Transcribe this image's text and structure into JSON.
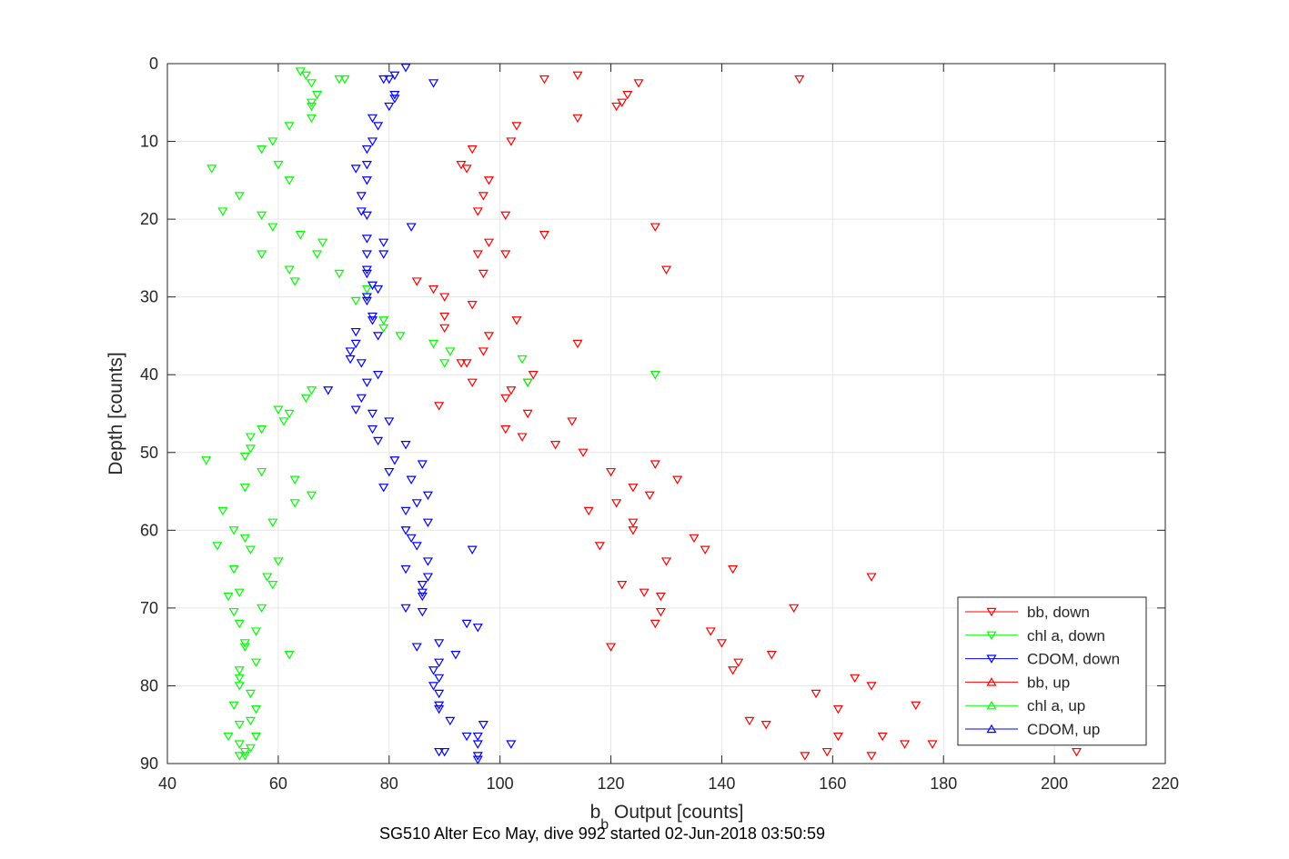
{
  "chart_data": {
    "type": "scatter",
    "xlabel": "b",
    "xlabel_subscript": "b",
    "xlabel_rest": " Output [counts]",
    "ylabel": "Depth [counts]",
    "caption": "SG510 Alter Eco May, dive 992 started 02-Jun-2018 03:50:59",
    "xlim": [
      40,
      220
    ],
    "ylim": [
      0,
      90
    ],
    "y_reversed": true,
    "grid": true,
    "legend_position": "lower-right",
    "xticks": [
      40,
      60,
      80,
      100,
      120,
      140,
      160,
      180,
      200,
      220
    ],
    "yticks": [
      0,
      10,
      20,
      30,
      40,
      50,
      60,
      70,
      80,
      90
    ],
    "series": [
      {
        "name": "bb, down",
        "color": "#ff0000",
        "marker": "triangle-down",
        "points": [
          [
            108,
            2
          ],
          [
            154,
            2
          ],
          [
            114,
            1.5
          ],
          [
            125,
            2.5
          ],
          [
            123,
            4
          ],
          [
            122,
            5
          ],
          [
            121,
            5.5
          ],
          [
            114,
            7
          ],
          [
            103,
            8
          ],
          [
            102,
            10
          ],
          [
            95,
            11
          ],
          [
            93,
            13
          ],
          [
            94,
            13.5
          ],
          [
            98,
            15
          ],
          [
            97,
            17
          ],
          [
            96,
            19
          ],
          [
            101,
            19.5
          ],
          [
            108,
            22
          ],
          [
            128,
            21
          ],
          [
            98,
            23
          ],
          [
            96,
            24.5
          ],
          [
            101,
            24.5
          ],
          [
            130,
            26.5
          ],
          [
            97,
            27
          ],
          [
            85,
            28
          ],
          [
            88,
            29
          ],
          [
            90,
            30
          ],
          [
            95,
            31
          ],
          [
            90,
            32.5
          ],
          [
            103,
            33
          ],
          [
            98,
            35
          ],
          [
            90,
            34
          ],
          [
            114,
            36
          ],
          [
            97,
            37
          ],
          [
            93,
            38.5
          ],
          [
            94,
            38.5
          ],
          [
            106,
            40
          ],
          [
            105,
            41
          ],
          [
            102,
            42
          ],
          [
            101,
            43
          ],
          [
            95,
            41
          ],
          [
            89,
            44
          ],
          [
            105,
            45
          ],
          [
            113,
            46
          ],
          [
            101,
            47
          ],
          [
            104,
            48
          ],
          [
            110,
            49
          ],
          [
            115,
            50
          ],
          [
            128,
            51.5
          ],
          [
            120,
            52.5
          ],
          [
            132,
            53.5
          ],
          [
            127,
            55.5
          ],
          [
            124,
            54.5
          ],
          [
            121,
            56.5
          ],
          [
            116,
            57.5
          ],
          [
            124,
            59
          ],
          [
            124,
            60
          ],
          [
            135,
            61
          ],
          [
            118,
            62
          ],
          [
            137,
            62.5
          ],
          [
            130,
            64
          ],
          [
            142,
            65
          ],
          [
            122,
            67
          ],
          [
            167,
            66
          ],
          [
            126,
            68
          ],
          [
            129,
            68.5
          ],
          [
            129,
            70.5
          ],
          [
            153,
            70
          ],
          [
            128,
            72
          ],
          [
            138,
            73
          ],
          [
            140,
            74.5
          ],
          [
            120,
            75
          ],
          [
            149,
            76
          ],
          [
            143,
            77
          ],
          [
            142,
            78
          ],
          [
            164,
            79
          ],
          [
            167,
            80
          ],
          [
            157,
            81
          ],
          [
            161,
            83
          ],
          [
            175,
            82.5
          ],
          [
            145,
            84.5
          ],
          [
            148,
            85
          ],
          [
            161,
            86.5
          ],
          [
            169,
            86.5
          ],
          [
            173,
            87.5
          ],
          [
            178,
            87.5
          ],
          [
            204,
            88.5
          ],
          [
            159,
            88.5
          ],
          [
            155,
            89
          ],
          [
            167,
            89
          ]
        ]
      },
      {
        "name": "chl a, down",
        "color": "#00ff00",
        "marker": "triangle-down",
        "points": [
          [
            64,
            1
          ],
          [
            65,
            1.5
          ],
          [
            71,
            2
          ],
          [
            72,
            2
          ],
          [
            66,
            2.5
          ],
          [
            67,
            4
          ],
          [
            66,
            5
          ],
          [
            66,
            5.5
          ],
          [
            66,
            7
          ],
          [
            62,
            8
          ],
          [
            59,
            10
          ],
          [
            57,
            11
          ],
          [
            60,
            13
          ],
          [
            48,
            13.5
          ],
          [
            62,
            15
          ],
          [
            53,
            17
          ],
          [
            50,
            19
          ],
          [
            57,
            19.5
          ],
          [
            59,
            21
          ],
          [
            64,
            22
          ],
          [
            68,
            23
          ],
          [
            57,
            24.5
          ],
          [
            67,
            24.5
          ],
          [
            62,
            26.5
          ],
          [
            71,
            27
          ],
          [
            63,
            28
          ],
          [
            76,
            29
          ],
          [
            76,
            30
          ],
          [
            74,
            30.5
          ],
          [
            79,
            33
          ],
          [
            79,
            34
          ],
          [
            82,
            35
          ],
          [
            88,
            36
          ],
          [
            91,
            37
          ],
          [
            90,
            38.5
          ],
          [
            104,
            38
          ],
          [
            128,
            40
          ],
          [
            105,
            41
          ],
          [
            66,
            42
          ],
          [
            65,
            43
          ],
          [
            60,
            44.5
          ],
          [
            61,
            46
          ],
          [
            62,
            45
          ],
          [
            57,
            47
          ],
          [
            55,
            48
          ],
          [
            55,
            49.5
          ],
          [
            47,
            51
          ],
          [
            54,
            50.5
          ],
          [
            57,
            52.5
          ],
          [
            63,
            53.5
          ],
          [
            54,
            54.5
          ],
          [
            66,
            55.5
          ],
          [
            63,
            56.5
          ],
          [
            50,
            57.5
          ],
          [
            59,
            59
          ],
          [
            52,
            60
          ],
          [
            54,
            61
          ],
          [
            49,
            62
          ],
          [
            55,
            62.5
          ],
          [
            60,
            64
          ],
          [
            52,
            65
          ],
          [
            58,
            66
          ],
          [
            59,
            67
          ],
          [
            51,
            68.5
          ],
          [
            53,
            68
          ],
          [
            57,
            70
          ],
          [
            52,
            70.5
          ],
          [
            53,
            72
          ],
          [
            56,
            73
          ],
          [
            54,
            74.5
          ],
          [
            54,
            75
          ],
          [
            62,
            76
          ],
          [
            56,
            77
          ],
          [
            53,
            78
          ],
          [
            53,
            79
          ],
          [
            53,
            80
          ],
          [
            55,
            81
          ],
          [
            52,
            82.5
          ],
          [
            56,
            83
          ],
          [
            53,
            85
          ],
          [
            55,
            84.5
          ],
          [
            51,
            86.5
          ],
          [
            56,
            86.5
          ],
          [
            53,
            87.5
          ],
          [
            55,
            88
          ],
          [
            54,
            88.5
          ],
          [
            53,
            89
          ],
          [
            54,
            89
          ]
        ]
      },
      {
        "name": "CDOM, down",
        "color": "#0000ff",
        "marker": "triangle-down",
        "points": [
          [
            83,
            0.5
          ],
          [
            81,
            1.5
          ],
          [
            80,
            2
          ],
          [
            79,
            2
          ],
          [
            88,
            2.5
          ],
          [
            81,
            4
          ],
          [
            81,
            4.5
          ],
          [
            80,
            5.5
          ],
          [
            77,
            7
          ],
          [
            78,
            8
          ],
          [
            77,
            10
          ],
          [
            76,
            11
          ],
          [
            76,
            13
          ],
          [
            74,
            13.5
          ],
          [
            76,
            15
          ],
          [
            75,
            17
          ],
          [
            75,
            19
          ],
          [
            76,
            19.5
          ],
          [
            84,
            21
          ],
          [
            76,
            22.5
          ],
          [
            79,
            23
          ],
          [
            76,
            24.5
          ],
          [
            79,
            24.5
          ],
          [
            76,
            26.5
          ],
          [
            76,
            27
          ],
          [
            77,
            28.5
          ],
          [
            78,
            29
          ],
          [
            76,
            30
          ],
          [
            76,
            30.5
          ],
          [
            77,
            32.5
          ],
          [
            77,
            33
          ],
          [
            78,
            35
          ],
          [
            74,
            34.5
          ],
          [
            74,
            36
          ],
          [
            73,
            37
          ],
          [
            75,
            38.5
          ],
          [
            73,
            38
          ],
          [
            76,
            41
          ],
          [
            78,
            40
          ],
          [
            69,
            42
          ],
          [
            75,
            43
          ],
          [
            74,
            44.5
          ],
          [
            77,
            45
          ],
          [
            80,
            46
          ],
          [
            77,
            47
          ],
          [
            78,
            48.5
          ],
          [
            83,
            49
          ],
          [
            81,
            51
          ],
          [
            86,
            51.5
          ],
          [
            80,
            52.5
          ],
          [
            84,
            53.5
          ],
          [
            79,
            54.5
          ],
          [
            87,
            55.5
          ],
          [
            85,
            56.5
          ],
          [
            83,
            57.5
          ],
          [
            87,
            59
          ],
          [
            83,
            60
          ],
          [
            84,
            61
          ],
          [
            85,
            62
          ],
          [
            95,
            62.5
          ],
          [
            87,
            64
          ],
          [
            83,
            65
          ],
          [
            87,
            66
          ],
          [
            86,
            67
          ],
          [
            86,
            68.5
          ],
          [
            86,
            68
          ],
          [
            83,
            70
          ],
          [
            86,
            70.5
          ],
          [
            94,
            72
          ],
          [
            96,
            72.5
          ],
          [
            89,
            74.5
          ],
          [
            85,
            75
          ],
          [
            92,
            76
          ],
          [
            89,
            77
          ],
          [
            88,
            78
          ],
          [
            89,
            79
          ],
          [
            88,
            80
          ],
          [
            89,
            81
          ],
          [
            89,
            83
          ],
          [
            89,
            82.5
          ],
          [
            91,
            84.5
          ],
          [
            97,
            85
          ],
          [
            94,
            86.5
          ],
          [
            96,
            86.5
          ],
          [
            96,
            87.5
          ],
          [
            102,
            87.5
          ],
          [
            89,
            88.5
          ],
          [
            90,
            88.5
          ],
          [
            96,
            89
          ],
          [
            96,
            89.5
          ]
        ]
      }
    ]
  }
}
